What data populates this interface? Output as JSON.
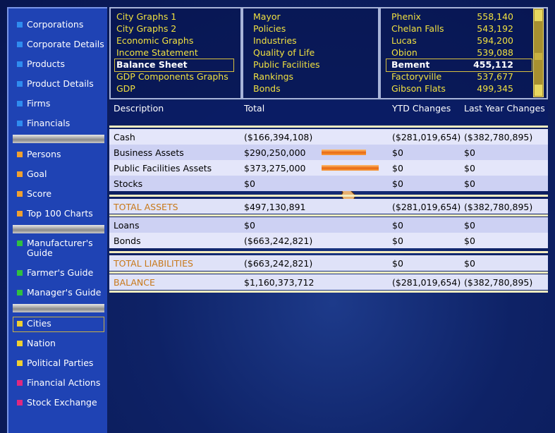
{
  "sidebar": {
    "groups": [
      [
        "Corporations",
        "Corporate Details",
        "Products",
        "Product Details",
        "Firms",
        "Financials"
      ],
      [
        "Persons",
        "Goal",
        "Score",
        "Top 100 Charts"
      ],
      [
        "Manufacturer's Guide",
        "Farmer's Guide",
        "Manager's Guide"
      ],
      [
        "Cities",
        "Nation",
        "Political Parties"
      ],
      [
        "Financial Actions",
        "Stock Exchange"
      ]
    ]
  },
  "menu": {
    "reports": [
      "City Graphs 1",
      "City Graphs 2",
      "Economic Graphs",
      "Income Statement",
      "Balance Sheet",
      "GDP Components Graphs",
      "GDP"
    ],
    "city_info": [
      "Mayor",
      "Policies",
      "Industries",
      "Quality of Life",
      "Public Facilities",
      "Rankings",
      "Bonds"
    ],
    "cities": [
      {
        "name": "Phenix",
        "population": "558,140"
      },
      {
        "name": "Chelan Falls",
        "population": "543,192"
      },
      {
        "name": "Lucas",
        "population": "594,200"
      },
      {
        "name": "Obion",
        "population": "539,088"
      },
      {
        "name": "Bement",
        "population": "455,112"
      },
      {
        "name": "Factoryville",
        "population": "537,677"
      },
      {
        "name": "Gibson Flats",
        "population": "499,345"
      }
    ]
  },
  "table": {
    "header": [
      "Description",
      "Total",
      "YTD Changes",
      "Last Year Changes"
    ],
    "rows": [
      {
        "cells": [
          "Cash",
          "($166,394,108)",
          "($281,019,654)",
          "($382,780,895)"
        ]
      },
      {
        "cells": [
          "Business Assets",
          "$290,250,000",
          "$0",
          "$0"
        ],
        "bar": 290250000
      },
      {
        "cells": [
          "Public Facilities Assets",
          "$373,275,000",
          "$0",
          "$0"
        ],
        "bar": 373275000
      },
      {
        "cells": [
          "Stocks",
          "$0",
          "$0",
          "$0"
        ]
      },
      {
        "cells": [
          "TOTAL ASSETS",
          "$497,130,891",
          "($281,019,654)",
          "($382,780,895)"
        ]
      },
      {
        "cells": [
          "Loans",
          "$0",
          "$0",
          "$0"
        ]
      },
      {
        "cells": [
          "Bonds",
          "($663,242,821)",
          "$0",
          "$0"
        ]
      },
      {
        "cells": [
          "TOTAL LIABILITIES",
          "($663,242,821)",
          "$0",
          "$0"
        ]
      },
      {
        "cells": [
          "BALANCE",
          "$1,160,373,712",
          "($281,019,654)",
          "($382,780,895)"
        ]
      }
    ]
  }
}
